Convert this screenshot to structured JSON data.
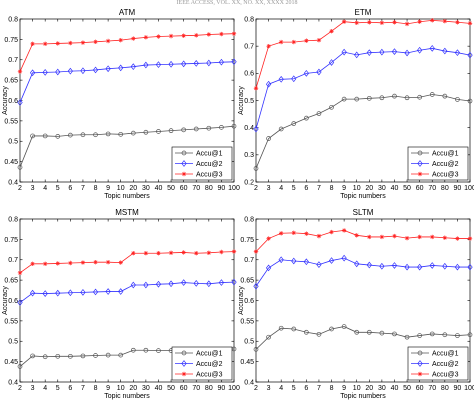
{
  "header": {
    "text": "IEEE ACCESS, VOL. XX, NO. XX, XXXX 2018"
  },
  "chart_data": [
    {
      "type": "line",
      "title": "ATM",
      "xlabel": "Topic numbers",
      "ylabel": "Accuracy",
      "categories": [
        "2",
        "3",
        "4",
        "5",
        "6",
        "7",
        "8",
        "9",
        "10",
        "20",
        "30",
        "40",
        "50",
        "60",
        "70",
        "80",
        "90",
        "100"
      ],
      "ylim": [
        0.4,
        0.8
      ],
      "yticks": [
        "0.4",
        "0.45",
        "0.5",
        "0.55",
        "0.6",
        "0.65",
        "0.7",
        "0.75",
        "0.8"
      ],
      "legend_position": "bottom-right",
      "grid": false,
      "series": [
        {
          "name": "Accu@1",
          "color": "#555555",
          "marker": "circle",
          "values": [
            0.436,
            0.513,
            0.513,
            0.512,
            0.515,
            0.516,
            0.516,
            0.518,
            0.517,
            0.52,
            0.522,
            0.524,
            0.526,
            0.528,
            0.53,
            0.532,
            0.534,
            0.537
          ]
        },
        {
          "name": "Accu@2",
          "color": "#3333ff",
          "marker": "diamond",
          "values": [
            0.595,
            0.668,
            0.669,
            0.67,
            0.672,
            0.673,
            0.675,
            0.678,
            0.68,
            0.683,
            0.687,
            0.688,
            0.689,
            0.69,
            0.691,
            0.692,
            0.694,
            0.695
          ]
        },
        {
          "name": "Accu@3",
          "color": "#ff2222",
          "marker": "star",
          "values": [
            0.671,
            0.739,
            0.739,
            0.74,
            0.741,
            0.742,
            0.744,
            0.746,
            0.748,
            0.752,
            0.755,
            0.757,
            0.758,
            0.759,
            0.76,
            0.762,
            0.763,
            0.764
          ]
        }
      ]
    },
    {
      "type": "line",
      "title": "ETM",
      "xlabel": "Topic numbers",
      "ylabel": "Accuracy",
      "categories": [
        "2",
        "3",
        "4",
        "5",
        "6",
        "7",
        "8",
        "9",
        "10",
        "20",
        "30",
        "40",
        "50",
        "60",
        "70",
        "80",
        "90",
        "100"
      ],
      "ylim": [
        0.2,
        0.8
      ],
      "yticks": [
        "0.2",
        "0.3",
        "0.4",
        "0.5",
        "0.6",
        "0.7",
        "0.8"
      ],
      "legend_position": "bottom-right",
      "grid": false,
      "series": [
        {
          "name": "Accu@1",
          "color": "#555555",
          "marker": "circle",
          "values": [
            0.25,
            0.36,
            0.395,
            0.415,
            0.435,
            0.452,
            0.475,
            0.505,
            0.505,
            0.508,
            0.51,
            0.516,
            0.51,
            0.512,
            0.522,
            0.516,
            0.504,
            0.498
          ]
        },
        {
          "name": "Accu@2",
          "color": "#3333ff",
          "marker": "diamond",
          "values": [
            0.395,
            0.56,
            0.578,
            0.58,
            0.6,
            0.605,
            0.64,
            0.678,
            0.668,
            0.676,
            0.678,
            0.68,
            0.675,
            0.685,
            0.692,
            0.682,
            0.676,
            0.667
          ]
        },
        {
          "name": "Accu@3",
          "color": "#ff2222",
          "marker": "star",
          "values": [
            0.545,
            0.7,
            0.715,
            0.715,
            0.72,
            0.722,
            0.755,
            0.79,
            0.786,
            0.788,
            0.786,
            0.788,
            0.782,
            0.79,
            0.795,
            0.792,
            0.788,
            0.784
          ]
        }
      ]
    },
    {
      "type": "line",
      "title": "MSTM",
      "xlabel": "Topic numbers",
      "ylabel": "Accuracy",
      "categories": [
        "2",
        "3",
        "4",
        "5",
        "6",
        "7",
        "8",
        "9",
        "10",
        "20",
        "30",
        "40",
        "50",
        "60",
        "70",
        "80",
        "90",
        "100"
      ],
      "ylim": [
        0.4,
        0.8
      ],
      "yticks": [
        "0.4",
        "0.45",
        "0.5",
        "0.55",
        "0.6",
        "0.65",
        "0.7",
        "0.75",
        "0.8"
      ],
      "legend_position": "bottom-right",
      "grid": false,
      "series": [
        {
          "name": "Accu@1",
          "color": "#555555",
          "marker": "circle",
          "values": [
            0.438,
            0.464,
            0.462,
            0.463,
            0.463,
            0.464,
            0.465,
            0.466,
            0.466,
            0.478,
            0.478,
            0.477,
            0.477,
            0.478,
            0.478,
            0.479,
            0.48,
            0.481
          ]
        },
        {
          "name": "Accu@2",
          "color": "#3333ff",
          "marker": "diamond",
          "values": [
            0.595,
            0.618,
            0.617,
            0.618,
            0.619,
            0.62,
            0.621,
            0.622,
            0.622,
            0.638,
            0.638,
            0.64,
            0.641,
            0.644,
            0.642,
            0.641,
            0.644,
            0.645
          ]
        },
        {
          "name": "Accu@3",
          "color": "#ff2222",
          "marker": "star",
          "values": [
            0.668,
            0.69,
            0.69,
            0.691,
            0.692,
            0.693,
            0.694,
            0.694,
            0.693,
            0.716,
            0.716,
            0.716,
            0.717,
            0.718,
            0.716,
            0.717,
            0.719,
            0.72
          ]
        }
      ]
    },
    {
      "type": "line",
      "title": "SLTM",
      "xlabel": "Topic numbers",
      "ylabel": "Accuracy",
      "categories": [
        "2",
        "3",
        "4",
        "5",
        "6",
        "7",
        "8",
        "9",
        "10",
        "20",
        "30",
        "40",
        "50",
        "60",
        "70",
        "80",
        "90",
        "100"
      ],
      "ylim": [
        0.4,
        0.8
      ],
      "yticks": [
        "0.4",
        "0.45",
        "0.5",
        "0.55",
        "0.6",
        "0.65",
        "0.7",
        "0.75",
        "0.8"
      ],
      "legend_position": "bottom-right",
      "grid": false,
      "series": [
        {
          "name": "Accu@1",
          "color": "#555555",
          "marker": "circle",
          "values": [
            0.48,
            0.51,
            0.532,
            0.53,
            0.522,
            0.517,
            0.53,
            0.536,
            0.522,
            0.522,
            0.52,
            0.518,
            0.51,
            0.514,
            0.518,
            0.516,
            0.514,
            0.516
          ]
        },
        {
          "name": "Accu@2",
          "color": "#3333ff",
          "marker": "diamond",
          "values": [
            0.635,
            0.68,
            0.7,
            0.697,
            0.695,
            0.688,
            0.698,
            0.704,
            0.69,
            0.687,
            0.684,
            0.686,
            0.682,
            0.682,
            0.686,
            0.684,
            0.682,
            0.682
          ]
        },
        {
          "name": "Accu@3",
          "color": "#ff2222",
          "marker": "star",
          "values": [
            0.72,
            0.752,
            0.765,
            0.766,
            0.764,
            0.758,
            0.768,
            0.772,
            0.76,
            0.756,
            0.756,
            0.758,
            0.753,
            0.756,
            0.756,
            0.754,
            0.752,
            0.752
          ]
        }
      ]
    }
  ]
}
